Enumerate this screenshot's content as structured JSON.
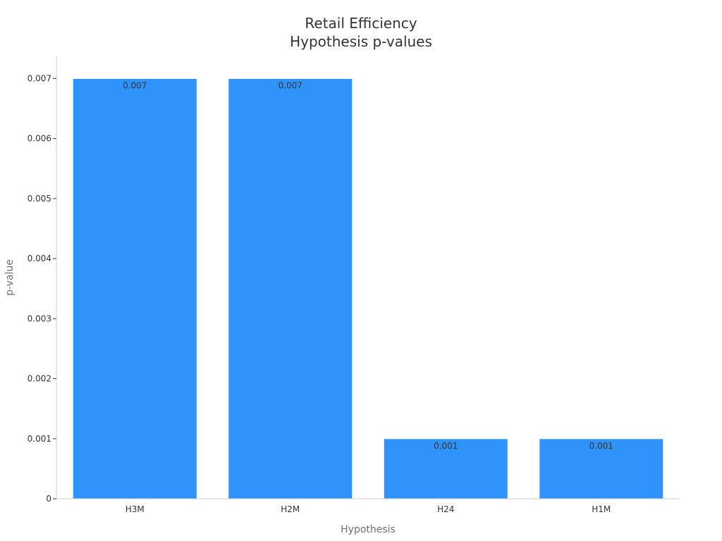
{
  "chart_data": {
    "type": "bar",
    "title": [
      "Retail Efficiency",
      "Hypothesis p-values"
    ],
    "xlabel": "Hypothesis",
    "ylabel": "p-value",
    "categories": [
      "H3M",
      "H2M",
      "H24",
      "H1M"
    ],
    "values": [
      0.007,
      0.007,
      0.001,
      0.001
    ],
    "data_labels": [
      "0.007",
      "0.007",
      "0.001",
      "0.001"
    ],
    "ylim": [
      0,
      0.007
    ],
    "yticks": [
      0,
      0.001,
      0.002,
      0.003,
      0.004,
      0.005,
      0.006,
      0.007
    ],
    "ytick_labels": [
      "0",
      "0.001",
      "0.002",
      "0.003",
      "0.004",
      "0.005",
      "0.006",
      "0.007"
    ],
    "grid": false,
    "legend": "none",
    "bar_color": "#2e93fa",
    "bar_edge_color": "#ffffff"
  }
}
